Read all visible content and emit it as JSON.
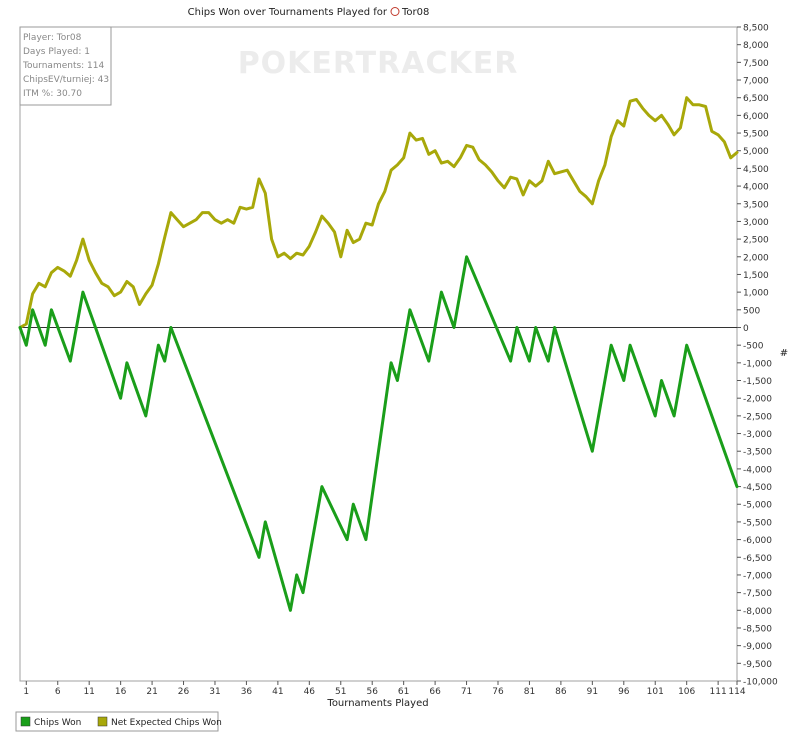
{
  "chart_data": {
    "type": "line",
    "title": "Chips Won over Tournaments Played for",
    "player_tag": "Tor08",
    "xlabel": "Tournaments Played",
    "ylabel": "#",
    "xlim": [
      0,
      114
    ],
    "ylim": [
      -10000,
      8500
    ],
    "x_ticks": [
      1,
      6,
      11,
      16,
      21,
      26,
      31,
      36,
      41,
      46,
      51,
      56,
      61,
      66,
      71,
      76,
      81,
      86,
      91,
      96,
      101,
      106,
      111,
      114
    ],
    "y_ticks": [
      8500,
      8000,
      7500,
      7000,
      6500,
      6000,
      5500,
      5000,
      4500,
      4000,
      3500,
      3000,
      2500,
      2000,
      1500,
      1000,
      500,
      0,
      -500,
      -1000,
      -1500,
      -2000,
      -2500,
      -3000,
      -3500,
      -4000,
      -4500,
      -5000,
      -5500,
      -6000,
      -6500,
      -7000,
      -7500,
      -8000,
      -8500,
      -9000,
      -9500,
      -10000
    ],
    "watermark": "POKERTRACKER",
    "info_box": [
      "Player: Tor08",
      "Days Played: 1",
      "Tournaments: 114",
      "ChipsEV/turniej: 43",
      "ITM %: 30.70"
    ],
    "legend": [
      "Chips Won",
      "Net Expected Chips Won"
    ],
    "series": [
      {
        "name": "Chips Won",
        "color": "#1a9e1a",
        "points": [
          [
            0,
            0
          ],
          [
            1,
            -500
          ],
          [
            2,
            500
          ],
          [
            4,
            -500
          ],
          [
            5,
            500
          ],
          [
            8,
            -950
          ],
          [
            10,
            1000
          ],
          [
            16,
            -2000
          ],
          [
            17,
            -1000
          ],
          [
            20,
            -2500
          ],
          [
            22,
            -500
          ],
          [
            23,
            -950
          ],
          [
            24,
            0
          ],
          [
            38,
            -6500
          ],
          [
            39,
            -5500
          ],
          [
            43,
            -8000
          ],
          [
            44,
            -7000
          ],
          [
            45,
            -7500
          ],
          [
            48,
            -4500
          ],
          [
            52,
            -6000
          ],
          [
            53,
            -5000
          ],
          [
            55,
            -6000
          ],
          [
            59,
            -1000
          ],
          [
            60,
            -1500
          ],
          [
            62,
            500
          ],
          [
            65,
            -950
          ],
          [
            67,
            1000
          ],
          [
            69,
            0
          ],
          [
            71,
            2000
          ],
          [
            78,
            -950
          ],
          [
            79,
            0
          ],
          [
            81,
            -950
          ],
          [
            82,
            0
          ],
          [
            84,
            -950
          ],
          [
            85,
            0
          ],
          [
            91,
            -3500
          ],
          [
            94,
            -500
          ],
          [
            96,
            -1500
          ],
          [
            97,
            -500
          ],
          [
            101,
            -2500
          ],
          [
            102,
            -1500
          ],
          [
            104,
            -2500
          ],
          [
            106,
            -500
          ],
          [
            114,
            -4500
          ]
        ]
      },
      {
        "name": "Net Expected Chips Won",
        "color": "#a8a80a",
        "points": [
          [
            0,
            0
          ],
          [
            1,
            100
          ],
          [
            2,
            950
          ],
          [
            3,
            1250
          ],
          [
            4,
            1150
          ],
          [
            5,
            1550
          ],
          [
            6,
            1700
          ],
          [
            7,
            1600
          ],
          [
            8,
            1450
          ],
          [
            9,
            1900
          ],
          [
            10,
            2500
          ],
          [
            11,
            1900
          ],
          [
            12,
            1550
          ],
          [
            13,
            1250
          ],
          [
            14,
            1150
          ],
          [
            15,
            900
          ],
          [
            16,
            1000
          ],
          [
            17,
            1300
          ],
          [
            18,
            1150
          ],
          [
            19,
            650
          ],
          [
            20,
            950
          ],
          [
            21,
            1200
          ],
          [
            22,
            1800
          ],
          [
            23,
            2550
          ],
          [
            24,
            3250
          ],
          [
            25,
            3050
          ],
          [
            26,
            2850
          ],
          [
            27,
            2950
          ],
          [
            28,
            3050
          ],
          [
            29,
            3250
          ],
          [
            30,
            3250
          ],
          [
            31,
            3050
          ],
          [
            32,
            2950
          ],
          [
            33,
            3050
          ],
          [
            34,
            2950
          ],
          [
            35,
            3400
          ],
          [
            36,
            3350
          ],
          [
            37,
            3400
          ],
          [
            38,
            4200
          ],
          [
            39,
            3800
          ],
          [
            40,
            2500
          ],
          [
            41,
            2000
          ],
          [
            42,
            2100
          ],
          [
            43,
            1950
          ],
          [
            44,
            2100
          ],
          [
            45,
            2050
          ],
          [
            46,
            2300
          ],
          [
            47,
            2700
          ],
          [
            48,
            3150
          ],
          [
            49,
            2950
          ],
          [
            50,
            2700
          ],
          [
            51,
            2000
          ],
          [
            52,
            2750
          ],
          [
            53,
            2400
          ],
          [
            54,
            2500
          ],
          [
            55,
            2950
          ],
          [
            56,
            2900
          ],
          [
            57,
            3500
          ],
          [
            58,
            3850
          ],
          [
            59,
            4450
          ],
          [
            60,
            4600
          ],
          [
            61,
            4800
          ],
          [
            62,
            5500
          ],
          [
            63,
            5300
          ],
          [
            64,
            5350
          ],
          [
            65,
            4900
          ],
          [
            66,
            5000
          ],
          [
            67,
            4650
          ],
          [
            68,
            4700
          ],
          [
            69,
            4550
          ],
          [
            70,
            4800
          ],
          [
            71,
            5150
          ],
          [
            72,
            5100
          ],
          [
            73,
            4750
          ],
          [
            74,
            4600
          ],
          [
            75,
            4400
          ],
          [
            76,
            4150
          ],
          [
            77,
            3950
          ],
          [
            78,
            4250
          ],
          [
            79,
            4200
          ],
          [
            80,
            3750
          ],
          [
            81,
            4150
          ],
          [
            82,
            4000
          ],
          [
            83,
            4150
          ],
          [
            84,
            4700
          ],
          [
            85,
            4350
          ],
          [
            86,
            4400
          ],
          [
            87,
            4450
          ],
          [
            88,
            4150
          ],
          [
            89,
            3850
          ],
          [
            90,
            3700
          ],
          [
            91,
            3500
          ],
          [
            92,
            4150
          ],
          [
            93,
            4600
          ],
          [
            94,
            5400
          ],
          [
            95,
            5850
          ],
          [
            96,
            5700
          ],
          [
            97,
            6400
          ],
          [
            98,
            6450
          ],
          [
            99,
            6200
          ],
          [
            100,
            6000
          ],
          [
            101,
            5850
          ],
          [
            102,
            6000
          ],
          [
            103,
            5750
          ],
          [
            104,
            5450
          ],
          [
            105,
            5650
          ],
          [
            106,
            6500
          ],
          [
            107,
            6300
          ],
          [
            108,
            6300
          ],
          [
            109,
            6250
          ],
          [
            110,
            5550
          ],
          [
            111,
            5450
          ],
          [
            112,
            5250
          ],
          [
            113,
            4800
          ],
          [
            114,
            4950
          ]
        ]
      }
    ],
    "grid": false,
    "legend_placement": "bottom-left"
  }
}
